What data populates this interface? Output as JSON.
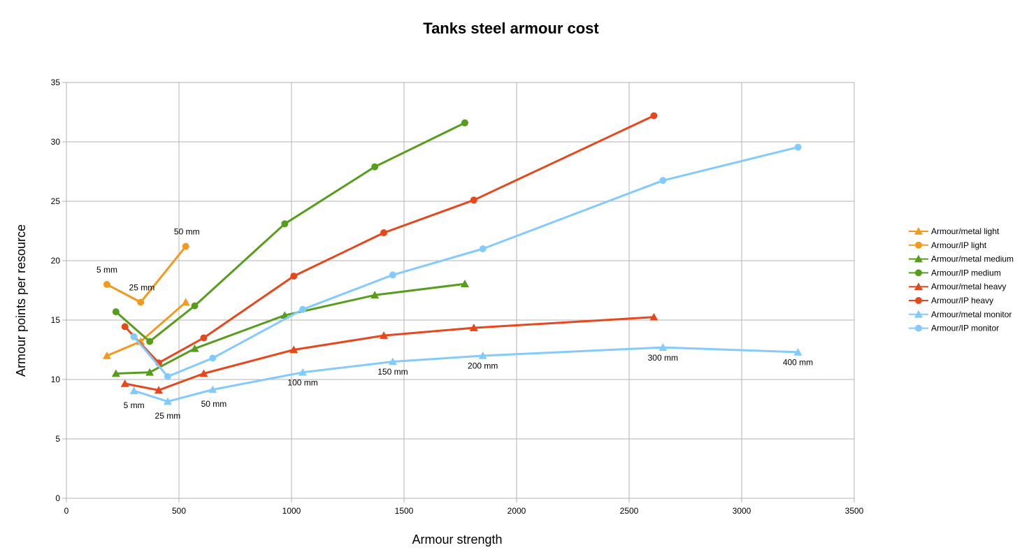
{
  "chart_data": {
    "type": "line",
    "title": "Tanks steel armour cost",
    "xlabel": "Armour strength",
    "ylabel": "Armour points per resource",
    "xlim": [
      0,
      3500
    ],
    "ylim": [
      0,
      35
    ],
    "xticks": [
      0,
      500,
      1000,
      1500,
      2000,
      2500,
      3000,
      3500
    ],
    "yticks": [
      0,
      5,
      10,
      15,
      20,
      25,
      30,
      35
    ],
    "grid": true,
    "legend_position": "right",
    "series": [
      {
        "name": "Armour/metal light",
        "color": "#f39a1e",
        "marker": "triangle",
        "points": [
          [
            180,
            12
          ],
          [
            330,
            13.2
          ],
          [
            530,
            16.5
          ]
        ]
      },
      {
        "name": "Armour/IP light",
        "color": "#f39a1e",
        "marker": "circle",
        "points": [
          [
            180,
            18
          ],
          [
            330,
            16.5
          ],
          [
            530,
            21.2
          ]
        ]
      },
      {
        "name": "Armour/metal medium",
        "color": "#579d1c",
        "marker": "triangle",
        "points": [
          [
            220,
            10.5
          ],
          [
            370,
            10.6
          ],
          [
            570,
            12.6
          ],
          [
            970,
            15.4
          ],
          [
            1370,
            17.1
          ],
          [
            1770,
            18.05
          ]
        ]
      },
      {
        "name": "Armour/IP medium",
        "color": "#579d1c",
        "marker": "circle",
        "points": [
          [
            220,
            15.7
          ],
          [
            370,
            13.2
          ],
          [
            570,
            16.2
          ],
          [
            970,
            23.1
          ],
          [
            1370,
            27.9
          ],
          [
            1770,
            31.6
          ]
        ]
      },
      {
        "name": "Armour/metal heavy",
        "color": "#e8461b",
        "marker": "triangle",
        "points": [
          [
            260,
            9.65
          ],
          [
            410,
            9.1
          ],
          [
            610,
            10.5
          ],
          [
            1010,
            12.5
          ],
          [
            1410,
            13.7
          ],
          [
            1810,
            14.35
          ],
          [
            2610,
            15.25
          ]
        ]
      },
      {
        "name": "Armour/IP heavy",
        "color": "#e8461b",
        "marker": "circle",
        "points": [
          [
            260,
            14.45
          ],
          [
            410,
            11.4
          ],
          [
            610,
            13.5
          ],
          [
            1010,
            18.7
          ],
          [
            1410,
            22.35
          ],
          [
            1810,
            25.1
          ],
          [
            2610,
            32.2
          ]
        ]
      },
      {
        "name": "Armour/metal monitor",
        "color": "#83caff",
        "marker": "triangle",
        "points": [
          [
            300,
            9.05
          ],
          [
            450,
            8.15
          ],
          [
            650,
            9.15
          ],
          [
            1050,
            10.6
          ],
          [
            1450,
            11.5
          ],
          [
            1850,
            12
          ],
          [
            2650,
            12.7
          ],
          [
            3250,
            12.3
          ]
        ]
      },
      {
        "name": "Armour/IP monitor",
        "color": "#83caff",
        "marker": "circle",
        "points": [
          [
            300,
            13.6
          ],
          [
            450,
            10.25
          ],
          [
            650,
            11.8
          ],
          [
            1050,
            15.9
          ],
          [
            1450,
            18.8
          ],
          [
            1850,
            21
          ],
          [
            2650,
            26.75
          ],
          [
            3250,
            29.55
          ]
        ]
      }
    ],
    "annotations": [
      {
        "text": "5 mm",
        "x": 180,
        "y": 19
      },
      {
        "text": "25 mm",
        "x": 335,
        "y": 17.5
      },
      {
        "text": "50 mm",
        "x": 535,
        "y": 22.2
      },
      {
        "text": "5 mm",
        "x": 300,
        "y": 7.6
      },
      {
        "text": "25 mm",
        "x": 450,
        "y": 6.7
      },
      {
        "text": "50 mm",
        "x": 655,
        "y": 7.7
      },
      {
        "text": "100 mm",
        "x": 1050,
        "y": 9.5
      },
      {
        "text": "150 mm",
        "x": 1450,
        "y": 10.4
      },
      {
        "text": "200 mm",
        "x": 1850,
        "y": 10.9
      },
      {
        "text": "300 mm",
        "x": 2650,
        "y": 11.6
      },
      {
        "text": "400 mm",
        "x": 3250,
        "y": 11.2
      }
    ]
  }
}
